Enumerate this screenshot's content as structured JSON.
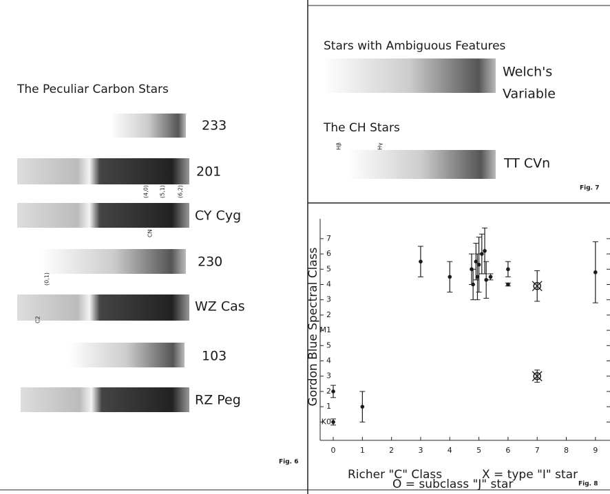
{
  "figures": [
    {
      "title": "The Peculiar Carbon Stars",
      "spectra": [
        "233",
        "201",
        "CY Cyg",
        "230",
        "WZ Cas",
        "103",
        "RZ Peg"
      ],
      "band_labels": [
        "(4,0)",
        "(5,1)",
        "(6,2)",
        "(0,1)",
        "CN",
        "C2"
      ],
      "caption": "Fig. 6"
    },
    {
      "title": "Stars with Ambiguous Features",
      "spectrum_label": [
        "Welch's",
        "Variable"
      ],
      "subtitle": "The CH Stars",
      "subtitle_spectrum_label": "TT CVn",
      "line_labels": [
        "Hβ",
        "Hγ"
      ],
      "caption": "Fig. 7"
    }
  ],
  "chart_data": {
    "type": "scatter",
    "caption": "Fig. 8",
    "y_label": "Gordon Blue Spectral Class",
    "x_label": "Richer \"C\" Class",
    "annotations": [
      "X = type \"I\" star",
      "O = subclass \"J\" star"
    ],
    "x": [
      0,
      0,
      1,
      3,
      4,
      4.75,
      4.8,
      4.9,
      4.95,
      5.0,
      5.1,
      5.2,
      5.25,
      5.4,
      6,
      6,
      7,
      7,
      9
    ],
    "values": [
      2,
      0,
      1,
      10.5,
      9.5,
      10,
      9,
      10.5,
      9.5,
      10.3,
      11,
      11.2,
      9.3,
      9.5,
      10,
      9,
      8.9,
      3,
      9.8
    ],
    "errors": [
      0.4,
      0.2,
      1,
      1,
      1,
      1,
      1,
      1.2,
      1.5,
      1.8,
      1.3,
      1.5,
      1.2,
      0.2,
      0.5,
      0.1,
      1,
      0.4,
      2
    ],
    "markers": [
      "dot",
      "dot",
      "dot",
      "dot",
      "dot",
      "dot",
      "dot",
      "dot",
      "dot",
      "dot",
      "dot",
      "dot",
      "dot",
      "dot",
      "dot",
      "dot",
      "x-circle",
      "x-circle",
      "dot"
    ],
    "color": "#1a1a1a",
    "xlim": [
      -0.45,
      9.5
    ],
    "xticks": [
      0,
      1,
      2,
      3,
      4,
      5,
      6,
      7,
      8,
      9
    ],
    "ylim": [
      -1.2,
      13.3
    ],
    "yticks": [
      {
        "value": 0,
        "label": "K0"
      },
      1,
      2,
      3,
      4,
      5,
      {
        "value": 6,
        "label": "M1"
      },
      {
        "value": 7,
        "label": "2"
      },
      {
        "value": 8,
        "label": "3"
      },
      {
        "value": 9,
        "label": "4"
      },
      {
        "value": 10,
        "label": "5"
      },
      {
        "value": 11,
        "label": "6"
      },
      {
        "value": 12,
        "label": "7"
      }
    ]
  }
}
